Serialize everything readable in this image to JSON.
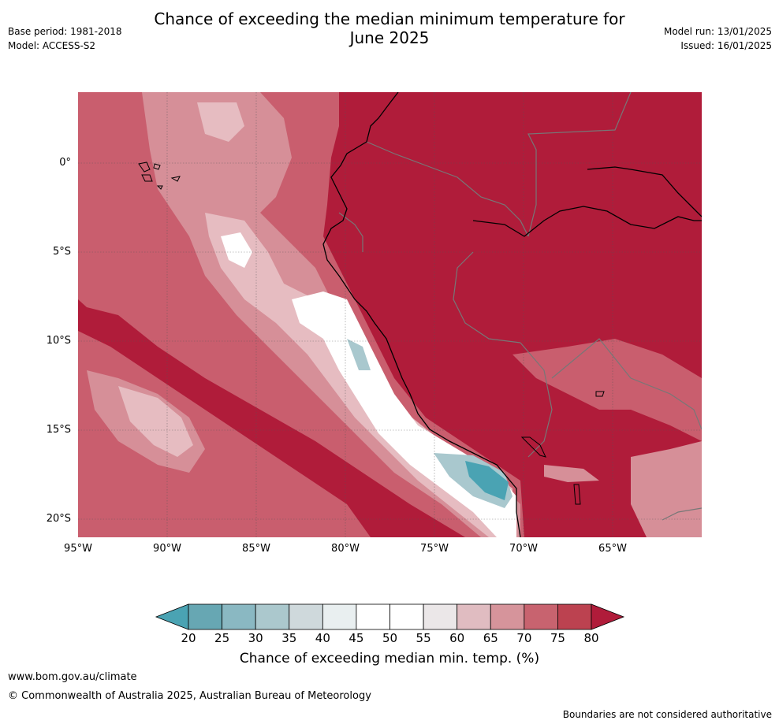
{
  "header": {
    "title_line1": "Chance of exceeding the median minimum temperature for",
    "title_line2": "June 2025",
    "base_period": "Base period: 1981-2018",
    "model": "Model: ACCESS-S2",
    "model_run": "Model run: 13/01/2025",
    "issued": "Issued: 16/01/2025"
  },
  "map": {
    "lat_labels": [
      "0°",
      "5°S",
      "10°S",
      "15°S",
      "20°S"
    ],
    "lon_labels": [
      "95°W",
      "90°W",
      "85°W",
      "80°W",
      "75°W",
      "70°W",
      "65°W"
    ],
    "colors": {
      "high": "#b01c3a",
      "mid_high": "#c95e6e",
      "mid": "#d68f98",
      "low_high": "#e6bcc1",
      "neutral": "#ffffff",
      "cool": "#4aa3b3",
      "cool_light": "#a9c8ce"
    }
  },
  "colorbar": {
    "ticks": [
      "20",
      "25",
      "30",
      "35",
      "40",
      "45",
      "50",
      "55",
      "60",
      "65",
      "70",
      "75",
      "80"
    ],
    "colors": [
      "#4aa3b3",
      "#67a7b3",
      "#8ab8c2",
      "#abc8cd",
      "#cfd9dc",
      "#e9eff0",
      "#ffffff",
      "#ffffff",
      "#ebe7e8",
      "#e0bcc1",
      "#d6949b",
      "#c8636f",
      "#bc4250",
      "#b01c3a"
    ],
    "label": "Chance of exceeding median min. temp. (%)"
  },
  "footer": {
    "url": "www.bom.gov.au/climate",
    "copyright": "© Commonwealth of Australia 2025, Australian Bureau of Meteorology",
    "disclaimer": "Boundaries are not considered authoritative"
  }
}
